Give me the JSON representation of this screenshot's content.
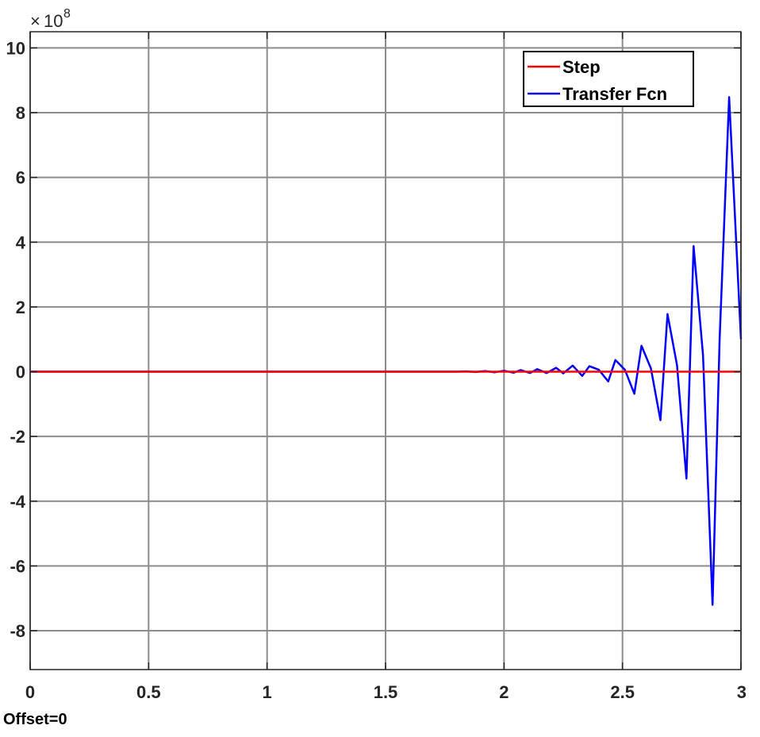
{
  "footer": {
    "label": "Offset=0"
  },
  "chart_data": {
    "type": "line",
    "title": "",
    "xlabel": "",
    "ylabel": "",
    "xlim": [
      0,
      3
    ],
    "ylim": [
      -9.2,
      10.5
    ],
    "y_multiplier_base": "10",
    "y_multiplier_exp": "8",
    "xticks": [
      0,
      0.5,
      1,
      1.5,
      2,
      2.5,
      3
    ],
    "xtick_labels": [
      "0",
      "0.5",
      "1",
      "1.5",
      "2",
      "2.5",
      "3"
    ],
    "yticks": [
      -8,
      -6,
      -4,
      -2,
      0,
      2,
      4,
      6,
      8,
      10
    ],
    "ytick_labels": [
      "-8",
      "-6",
      "-4",
      "-2",
      "0",
      "2",
      "4",
      "6",
      "8",
      "10"
    ],
    "grid": true,
    "legend_position": "top-right",
    "series": [
      {
        "name": "Step",
        "color": "#ff0000",
        "x": [
          0,
          3
        ],
        "y": [
          0,
          0
        ]
      },
      {
        "name": "Transfer Fcn",
        "color": "#0000ff",
        "x": [
          0,
          1.8,
          1.84,
          1.88,
          1.92,
          1.96,
          2.0,
          2.04,
          2.07,
          2.11,
          2.14,
          2.18,
          2.22,
          2.25,
          2.29,
          2.33,
          2.36,
          2.4,
          2.44,
          2.47,
          2.51,
          2.55,
          2.58,
          2.62,
          2.66,
          2.69,
          2.73,
          2.77,
          2.8,
          2.84,
          2.88,
          2.91,
          2.95,
          3.0
        ],
        "y": [
          0,
          0,
          0.01,
          -0.01,
          0.02,
          -0.02,
          0.03,
          -0.03,
          0.05,
          -0.04,
          0.08,
          -0.04,
          0.12,
          -0.05,
          0.19,
          -0.13,
          0.17,
          0.06,
          -0.3,
          0.36,
          0.06,
          -0.68,
          0.8,
          0.1,
          -1.5,
          1.78,
          0.2,
          -3.3,
          3.88,
          0.5,
          -7.2,
          1.0,
          8.48,
          1.0
        ]
      }
    ]
  }
}
